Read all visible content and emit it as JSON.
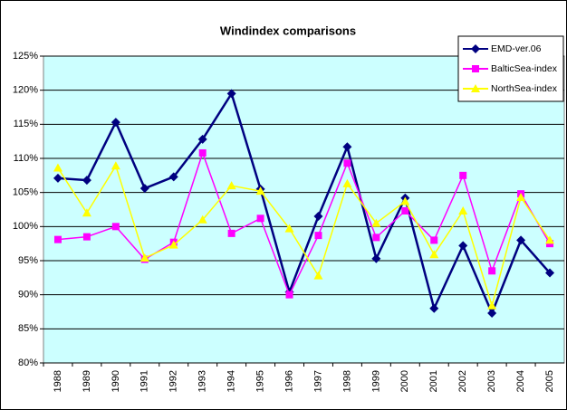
{
  "chart_data": {
    "type": "line",
    "title": "Windindex comparisons",
    "categories": [
      "1988",
      "1989",
      "1990",
      "1991",
      "1992",
      "1993",
      "1994",
      "1995",
      "1996",
      "1997",
      "1998",
      "1999",
      "2000",
      "2001",
      "2002",
      "2003",
      "2004",
      "2005"
    ],
    "series": [
      {
        "name": "EMD-ver.06",
        "color": "#000080",
        "marker": "diamond",
        "values": [
          107.1,
          106.8,
          115.3,
          105.6,
          107.3,
          112.8,
          119.5,
          105.5,
          90.4,
          101.5,
          111.7,
          95.3,
          104.2,
          88.0,
          97.2,
          87.3,
          98.0,
          93.2
        ]
      },
      {
        "name": "BalticSea-index",
        "color": "#ff00ff",
        "marker": "square",
        "values": [
          98.1,
          98.5,
          100.0,
          95.2,
          97.7,
          110.8,
          99.0,
          101.2,
          90.0,
          98.7,
          109.3,
          98.4,
          102.3,
          98.0,
          107.5,
          93.5,
          104.8,
          97.5
        ]
      },
      {
        "name": "NorthSea-index",
        "color": "#ffff00",
        "marker": "triangle",
        "values": [
          108.6,
          102.0,
          108.9,
          95.4,
          97.3,
          101.0,
          106.0,
          105.2,
          99.7,
          92.8,
          106.3,
          100.5,
          103.7,
          95.9,
          102.3,
          88.4,
          104.3,
          98.0
        ]
      }
    ],
    "ylim": [
      80,
      125
    ],
    "yticks": [
      {
        "value": 80,
        "label": "80%"
      },
      {
        "value": 85,
        "label": "85%"
      },
      {
        "value": 90,
        "label": "90%"
      },
      {
        "value": 95,
        "label": "95%"
      },
      {
        "value": 100,
        "label": "100%"
      },
      {
        "value": 105,
        "label": "105%"
      },
      {
        "value": 110,
        "label": "110%"
      },
      {
        "value": 115,
        "label": "115%"
      },
      {
        "value": 120,
        "label": "120%"
      },
      {
        "value": 125,
        "label": "125%"
      }
    ],
    "grid": true,
    "plot_background": "#ccffff",
    "legend": "top-right"
  }
}
